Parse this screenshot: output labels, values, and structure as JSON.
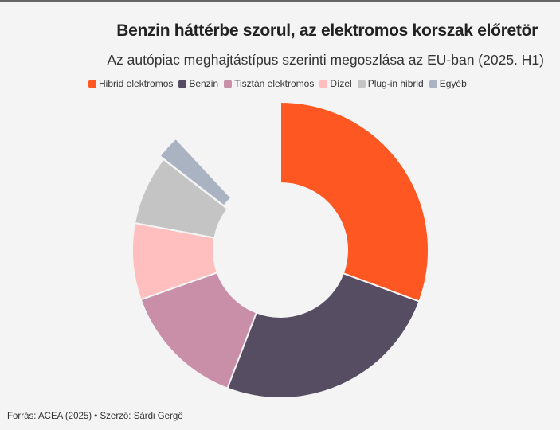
{
  "title": "Benzin háttérbe szorul, az elektromos korszak előretör",
  "subtitle": "Az autópiac meghajtástípus szerinti megoszlása az EU-ban (2025. H1)",
  "source": "Forrás: ACEA (2025) • Szerző: Sárdi Gergő",
  "chart_data": {
    "type": "pie",
    "variant": "donut",
    "title": "Benzin háttérbe szorul, az elektromos korszak előretör",
    "unit": "%",
    "categories": [
      "Hibrid elektromos",
      "Benzin",
      "Tisztán elektromos",
      "Dízel",
      "Plug-in hibrid",
      "Egyéb"
    ],
    "values": [
      34.8,
      28.6,
      15.6,
      9.5,
      8.6,
      2.9
    ],
    "colors": [
      "#ff5722",
      "#574d63",
      "#c98fa8",
      "#ffbfbf",
      "#c4c4c4",
      "#a9b3c1"
    ],
    "legend_position": "top"
  }
}
